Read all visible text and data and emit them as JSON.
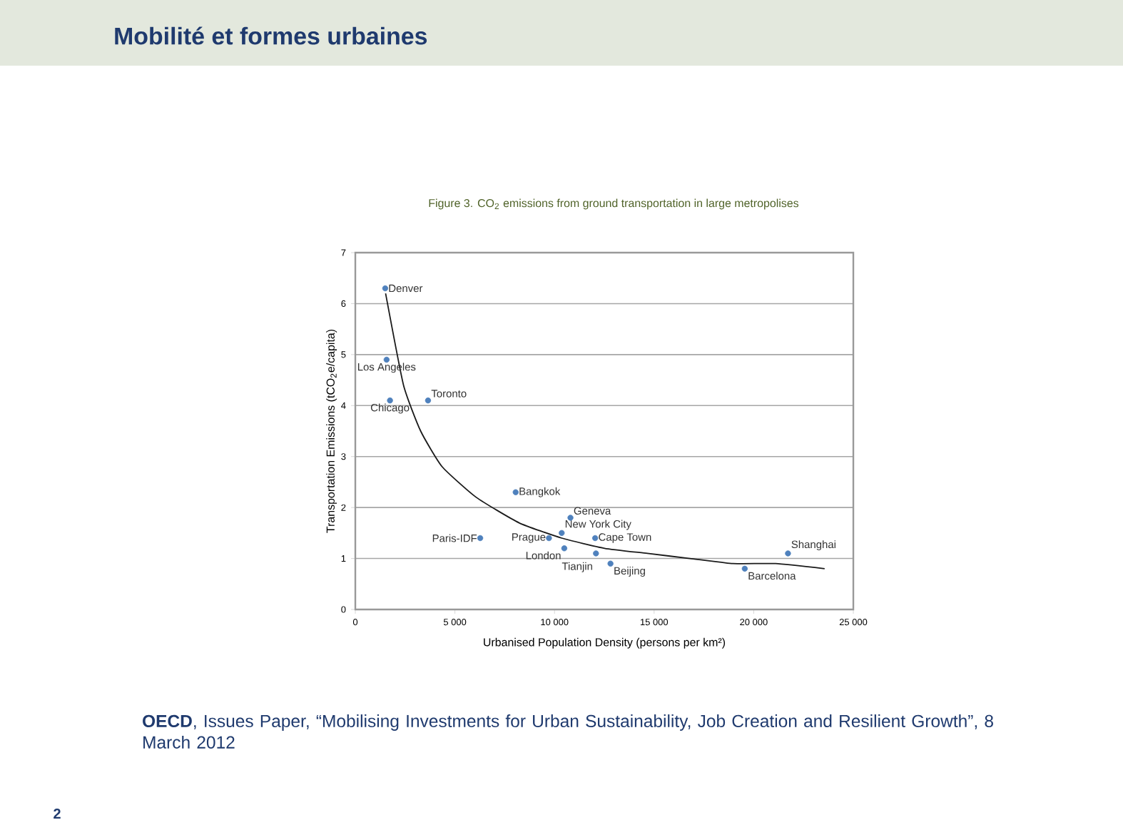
{
  "chart_data": {
    "type": "scatter",
    "title": "Mobilité et formes urbaines",
    "subtitle": "Figure 3. CO$_{2}$ emissions from ground transportation in large metropolises",
    "xlabel": "Urbanised Population Density  (persons per km²)",
    "ylabel": "Transportation Emissions (tCO$_{2}$e/capita)",
    "xlim": [
      0,
      25000
    ],
    "ylim": [
      0,
      7
    ],
    "xticks": [
      0,
      {
        "value": 5000,
        "label": "5 000"
      },
      {
        "value": 10000,
        "label": "10 000"
      },
      {
        "value": 15000,
        "label": "15 000"
      },
      {
        "value": 20000,
        "label": "20 000"
      },
      {
        "value": 25000,
        "label": "25 000"
      }
    ],
    "yticks": [
      0,
      1,
      2,
      3,
      4,
      5,
      6,
      7
    ],
    "grid": "y",
    "series": [
      {
        "marker": "circle",
        "color": "#4f81bd",
        "x": [
          1500,
          1570,
          1740,
          3650,
          8050,
          6270,
          9720,
          10800,
          10360,
          10490,
          12040,
          12080,
          12810,
          19550,
          21720
        ],
        "values": [
          6.3,
          4.9,
          4.1,
          4.1,
          2.3,
          1.4,
          1.4,
          1.8,
          1.5,
          1.2,
          1.4,
          1.1,
          0.9,
          0.8,
          1.1
        ]
      },
      {
        "type": "line",
        "marker": "none",
        "color": "#1a1a1a",
        "x": [
          1520,
          2420,
          3280,
          4360,
          6070,
          8220,
          10360,
          12510,
          14660,
          16800,
          18950,
          21100,
          23560
        ],
        "values": [
          6.2,
          4.4,
          3.5,
          2.8,
          2.2,
          1.7,
          1.4,
          1.2,
          1.1,
          1.0,
          0.9,
          0.9,
          0.8
        ]
      }
    ],
    "annotations": [
      "**OECD**, Issues Paper, “Mobilising Investments for Urban Sustainability, Job Creation and Resilient Growth”, 8 March 2012",
      "2",
      {
        "text": "Denver",
        "x": 1500,
        "y": 6.3
      },
      {
        "text": "Los Angeles",
        "x": 1570,
        "y": 4.9
      },
      {
        "text": "Chicago",
        "x": 1740,
        "y": 4.1
      },
      {
        "text": "Toronto",
        "x": 3650,
        "y": 4.1
      },
      {
        "text": "Bangkok",
        "x": 8050,
        "y": 2.3
      },
      {
        "text": "Paris-IDF",
        "x": 6270,
        "y": 1.4
      },
      {
        "text": "Prague",
        "x": 9720,
        "y": 1.4
      },
      {
        "text": "Geneva",
        "x": 10800,
        "y": 1.8
      },
      {
        "text": "New York City",
        "x": 10360,
        "y": 1.5
      },
      {
        "text": "London",
        "x": 10490,
        "y": 1.2
      },
      {
        "text": "Cape Town",
        "x": 12040,
        "y": 1.4
      },
      {
        "text": "Tianjin",
        "x": 12080,
        "y": 1.1
      },
      {
        "text": "Beijing",
        "x": 12810,
        "y": 0.9
      },
      {
        "text": "Barcelona",
        "x": 19550,
        "y": 0.8
      },
      {
        "text": "Shanghai",
        "x": 21720,
        "y": 1.1
      }
    ]
  }
}
